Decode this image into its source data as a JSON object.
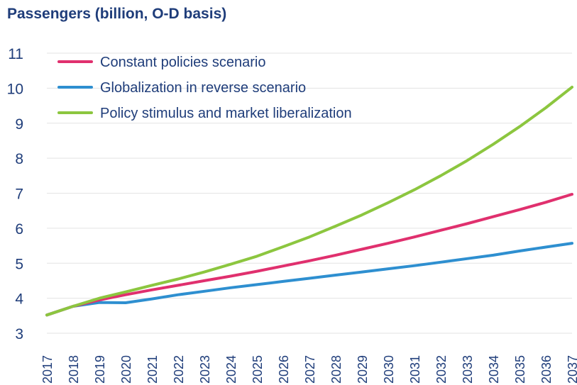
{
  "chart_data": {
    "type": "line",
    "title": "Passengers (billion, O-D basis)",
    "x": [
      "2017",
      "2018",
      "2019",
      "2020",
      "2021",
      "2022",
      "2023",
      "2024",
      "2025",
      "2026",
      "2027",
      "2028",
      "2029",
      "2030",
      "2031",
      "2032",
      "2033",
      "2034",
      "2035",
      "2036",
      "2037"
    ],
    "ylim": [
      3,
      11
    ],
    "yticks": [
      "3",
      "4",
      "5",
      "6",
      "7",
      "8",
      "9",
      "10",
      "11"
    ],
    "grid": true,
    "legend_position": "top-left",
    "series": [
      {
        "name": "Constant policies scenario",
        "color": "#e0306e",
        "values": [
          3.52,
          3.77,
          3.95,
          4.1,
          4.24,
          4.37,
          4.5,
          4.63,
          4.77,
          4.92,
          5.07,
          5.23,
          5.4,
          5.57,
          5.75,
          5.94,
          6.13,
          6.33,
          6.53,
          6.74,
          6.97
        ]
      },
      {
        "name": "Globalization in reverse scenario",
        "color": "#2e8fd0",
        "values": [
          3.52,
          3.77,
          3.88,
          3.87,
          3.98,
          4.1,
          4.2,
          4.3,
          4.39,
          4.48,
          4.57,
          4.66,
          4.75,
          4.84,
          4.93,
          5.03,
          5.13,
          5.23,
          5.35,
          5.46,
          5.57
        ]
      },
      {
        "name": "Policy stimulus and market liberalization",
        "color": "#8cc63f",
        "values": [
          3.52,
          3.77,
          4.0,
          4.18,
          4.37,
          4.55,
          4.75,
          4.97,
          5.2,
          5.47,
          5.75,
          6.06,
          6.38,
          6.73,
          7.1,
          7.5,
          7.93,
          8.4,
          8.9,
          9.44,
          10.03
        ]
      }
    ]
  }
}
